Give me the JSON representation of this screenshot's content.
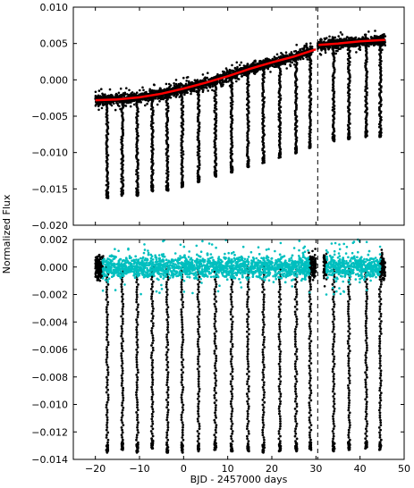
{
  "figure": {
    "xlabel": "BJD - 2457000 days",
    "ylabel": "Normalized Flux"
  },
  "chart_data": [
    {
      "type": "scatter",
      "panel": "top",
      "xlim": [
        -25,
        50
      ],
      "ylim": [
        -0.02,
        0.01
      ],
      "xticks": [
        -20,
        -10,
        0,
        10,
        20,
        30,
        40,
        50
      ],
      "yticks": [
        -0.02,
        -0.015,
        -0.01,
        -0.005,
        0.0,
        0.005,
        0.01
      ],
      "ytick_labels": [
        "−0.020",
        "−0.015",
        "−0.010",
        "−0.005",
        "0.000",
        "0.005",
        "0.010"
      ],
      "grid": false,
      "data_range_x": [
        -20.0,
        45.7
      ],
      "gap_x": [
        29.3,
        30.4
      ],
      "vline_x": 30.4,
      "baseline": [
        {
          "x": -20,
          "y": -0.0028
        },
        {
          "x": -15,
          "y": -0.0027
        },
        {
          "x": -10,
          "y": -0.0024
        },
        {
          "x": -5,
          "y": -0.0019
        },
        {
          "x": 0,
          "y": -0.0012
        },
        {
          "x": 5,
          "y": -0.0004
        },
        {
          "x": 10,
          "y": 0.0005
        },
        {
          "x": 15,
          "y": 0.0015
        },
        {
          "x": 20,
          "y": 0.0024
        },
        {
          "x": 25,
          "y": 0.0032
        },
        {
          "x": 30,
          "y": 0.0042
        },
        {
          "x": 30.6,
          "y": 0.0048
        },
        {
          "x": 35,
          "y": 0.005
        },
        {
          "x": 40,
          "y": 0.0053
        },
        {
          "x": 45.7,
          "y": 0.0055
        }
      ],
      "noise_half_width": 0.0007,
      "transits": [
        {
          "x": -17.3,
          "depth": 0.0135
        },
        {
          "x": -13.9,
          "depth": 0.0133
        },
        {
          "x": -10.5,
          "depth": 0.0135
        },
        {
          "x": -7.1,
          "depth": 0.0132
        },
        {
          "x": -3.7,
          "depth": 0.0135
        },
        {
          "x": -0.3,
          "depth": 0.0135
        },
        {
          "x": 3.4,
          "depth": 0.0134
        },
        {
          "x": 7.2,
          "depth": 0.0133
        },
        {
          "x": 10.9,
          "depth": 0.0134
        },
        {
          "x": 14.6,
          "depth": 0.0134
        },
        {
          "x": 18.1,
          "depth": 0.0135
        },
        {
          "x": 21.8,
          "depth": 0.0134
        },
        {
          "x": 25.5,
          "depth": 0.0134
        },
        {
          "x": 28.7,
          "depth": 0.0133
        },
        {
          "x": 34.0,
          "depth": 0.0134
        },
        {
          "x": 37.5,
          "depth": 0.0133
        },
        {
          "x": 41.4,
          "depth": 0.0132
        },
        {
          "x": 44.6,
          "depth": 0.0133
        }
      ],
      "series": [
        {
          "points_color": "#000000"
        },
        {
          "line_color": "#ff0000"
        }
      ]
    },
    {
      "type": "scatter",
      "panel": "bottom",
      "xlim": [
        -25,
        50
      ],
      "ylim": [
        -0.014,
        0.002
      ],
      "xticks": [
        -20,
        -10,
        0,
        10,
        20,
        30,
        40,
        50
      ],
      "xtick_labels": [
        "−20",
        "−10",
        "0",
        "10",
        "20",
        "30",
        "40",
        "50"
      ],
      "yticks": [
        -0.014,
        -0.012,
        -0.01,
        -0.008,
        -0.006,
        -0.004,
        -0.002,
        0.0,
        0.002
      ],
      "ytick_labels": [
        "−0.014",
        "−0.012",
        "−0.010",
        "−0.008",
        "−0.006",
        "−0.004",
        "−0.002",
        "0.000",
        "0.002"
      ],
      "grid": false,
      "data_range_x": [
        -20.0,
        45.7
      ],
      "gap_x": [
        30.0,
        31.7
      ],
      "vline_x": 30.4,
      "noise_half_width": 0.0008,
      "black_band_ranges": [
        [
          -20.0,
          -18.2
        ],
        [
          28.4,
          30.0
        ],
        [
          31.7,
          32.4
        ],
        [
          44.6,
          45.7
        ]
      ],
      "transits": [
        {
          "x": -17.3,
          "depth": 0.0135
        },
        {
          "x": -13.9,
          "depth": 0.0133
        },
        {
          "x": -10.5,
          "depth": 0.0135
        },
        {
          "x": -7.1,
          "depth": 0.0132
        },
        {
          "x": -3.7,
          "depth": 0.0135
        },
        {
          "x": -0.3,
          "depth": 0.0135
        },
        {
          "x": 3.4,
          "depth": 0.0134
        },
        {
          "x": 7.2,
          "depth": 0.0133
        },
        {
          "x": 10.9,
          "depth": 0.0134
        },
        {
          "x": 14.6,
          "depth": 0.0134
        },
        {
          "x": 18.1,
          "depth": 0.0135
        },
        {
          "x": 21.8,
          "depth": 0.0134
        },
        {
          "x": 25.5,
          "depth": 0.0134
        },
        {
          "x": 28.7,
          "depth": 0.0133
        },
        {
          "x": 34.0,
          "depth": 0.0134
        },
        {
          "x": 37.5,
          "depth": 0.0133
        },
        {
          "x": 41.4,
          "depth": 0.0132
        },
        {
          "x": 44.6,
          "depth": 0.0133
        }
      ],
      "series": [
        {
          "points_color": "#000000"
        },
        {
          "points_color": "#00bfbf"
        }
      ]
    }
  ]
}
